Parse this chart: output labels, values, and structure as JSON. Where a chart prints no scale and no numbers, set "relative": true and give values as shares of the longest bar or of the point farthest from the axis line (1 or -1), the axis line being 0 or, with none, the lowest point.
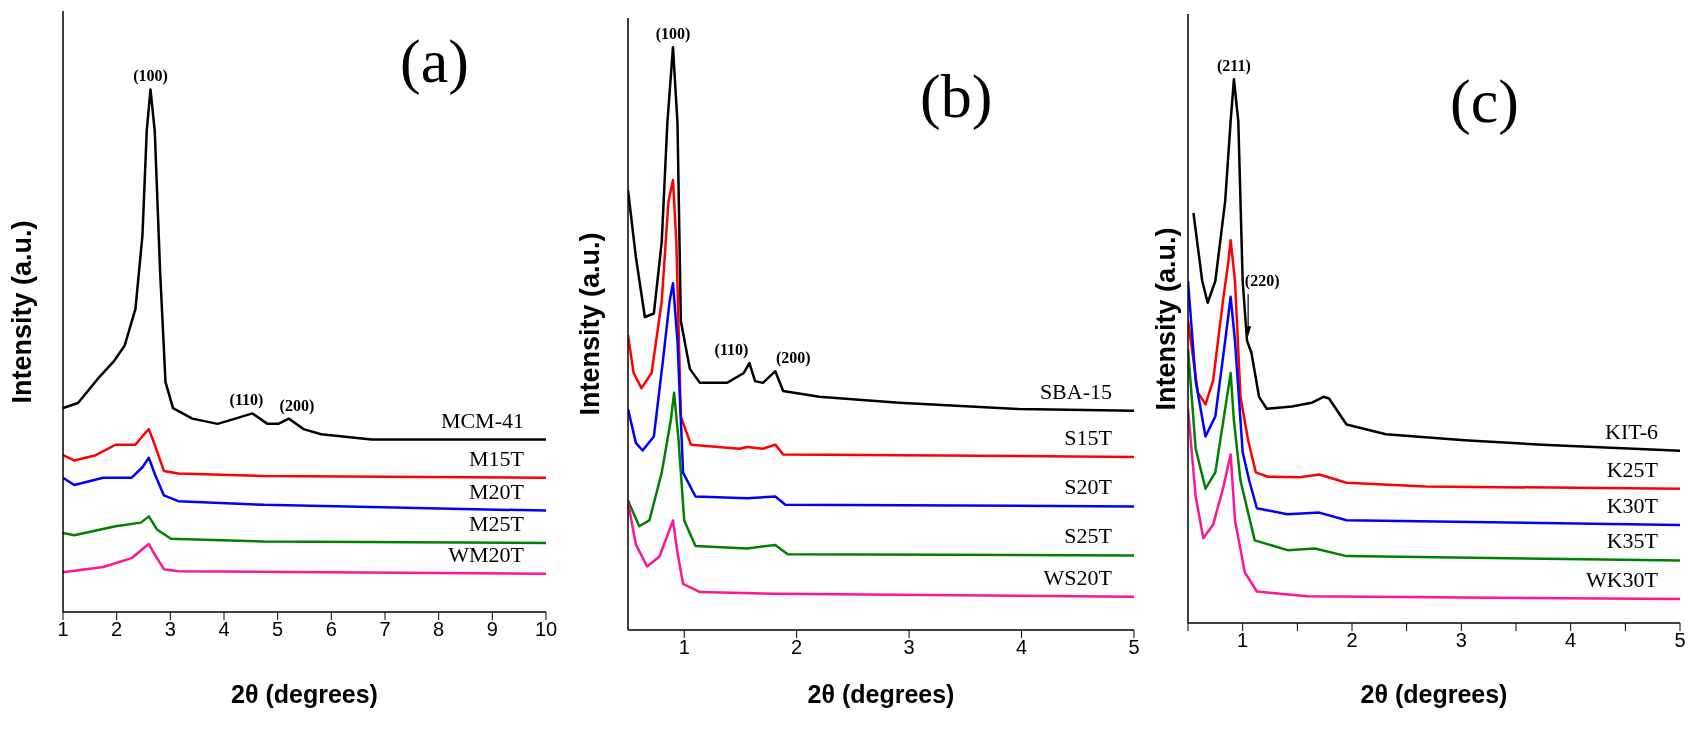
{
  "chart_data": [
    {
      "type": "line",
      "title": "(a)",
      "xlabel": "2θ (degrees)",
      "ylabel": "Intensity (a.u.)",
      "relative": true,
      "marker": "none",
      "line_style": "solid",
      "xlim": [
        1,
        10
      ],
      "xticks": [
        1,
        2,
        3,
        4,
        5,
        6,
        7,
        8,
        9,
        10
      ],
      "annotations": [
        {
          "text": "(100)",
          "x": 2.63,
          "y": 1.0
        },
        {
          "text": "(110)",
          "x": 4.53,
          "y": 0.38
        },
        {
          "text": "(200)",
          "x": 5.21,
          "y": 0.37
        }
      ],
      "series": [
        {
          "name": "MCM-41",
          "color": "#000000",
          "x": [
            1.0,
            1.28,
            1.68,
            1.95,
            2.15,
            2.35,
            2.48,
            2.56,
            2.63,
            2.71,
            2.81,
            2.91,
            3.05,
            3.41,
            3.88,
            4.21,
            4.53,
            4.81,
            5.01,
            5.21,
            5.48,
            5.81,
            6.75,
            8.08,
            10
          ],
          "values": [
            0.39,
            0.4,
            0.45,
            0.48,
            0.51,
            0.58,
            0.72,
            0.92,
            1.0,
            0.92,
            0.65,
            0.44,
            0.39,
            0.37,
            0.36,
            0.37,
            0.38,
            0.36,
            0.36,
            0.37,
            0.35,
            0.34,
            0.33,
            0.33,
            0.33
          ]
        },
        {
          "name": "M15T",
          "color": "#ff0000",
          "x": [
            1.0,
            1.21,
            1.61,
            1.98,
            2.35,
            2.51,
            2.6,
            2.71,
            2.88,
            3.15,
            4.75,
            10
          ],
          "values": [
            0.3,
            0.29,
            0.3,
            0.32,
            0.32,
            0.34,
            0.35,
            0.32,
            0.27,
            0.265,
            0.26,
            0.257
          ]
        },
        {
          "name": "M20T",
          "color": "#0000ff",
          "x": [
            1.0,
            1.21,
            1.75,
            2.28,
            2.48,
            2.6,
            2.71,
            2.88,
            3.15,
            4.75,
            10
          ],
          "values": [
            0.257,
            0.243,
            0.257,
            0.257,
            0.277,
            0.295,
            0.264,
            0.223,
            0.212,
            0.205,
            0.194
          ]
        },
        {
          "name": "M25T",
          "color": "#008000",
          "x": [
            1.0,
            1.21,
            1.98,
            2.45,
            2.6,
            2.75,
            3.01,
            4.75,
            10
          ],
          "values": [
            0.151,
            0.147,
            0.164,
            0.171,
            0.183,
            0.158,
            0.14,
            0.135,
            0.132
          ]
        },
        {
          "name": "WM20T",
          "color": "#ff1493",
          "x": [
            1.0,
            1.75,
            2.28,
            2.51,
            2.6,
            2.71,
            2.88,
            3.15,
            10
          ],
          "values": [
            0.076,
            0.086,
            0.103,
            0.123,
            0.13,
            0.11,
            0.082,
            0.078,
            0.073
          ]
        }
      ]
    },
    {
      "type": "line",
      "title": "(b)",
      "xlabel": "2θ (degrees)",
      "ylabel": "Intensity (a.u.)",
      "relative": true,
      "marker": "none",
      "line_style": "solid",
      "xlim": [
        0.5,
        5
      ],
      "xticks": [
        1,
        2,
        3,
        4,
        5
      ],
      "annotations": [
        {
          "text": "(100)",
          "x": 0.9,
          "y": 1.0
        },
        {
          "text": "(110)",
          "x": 1.58,
          "y": 0.458
        },
        {
          "text": "(200)",
          "x": 1.81,
          "y": 0.444
        }
      ],
      "series": [
        {
          "name": "SBA-15",
          "color": "#000000",
          "x": [
            0.5,
            0.57,
            0.65,
            0.73,
            0.8,
            0.85,
            0.9,
            0.94,
            0.97,
            1.05,
            1.14,
            1.38,
            1.53,
            1.58,
            1.63,
            1.7,
            1.81,
            1.88,
            2.2,
            2.91,
            3.98,
            5
          ],
          "values": [
            0.755,
            0.64,
            0.537,
            0.543,
            0.666,
            0.87,
            1.0,
            0.87,
            0.53,
            0.448,
            0.424,
            0.424,
            0.441,
            0.458,
            0.427,
            0.424,
            0.444,
            0.41,
            0.4,
            0.39,
            0.379,
            0.376
          ]
        },
        {
          "name": "S15T",
          "color": "#ff0000",
          "x": [
            0.5,
            0.55,
            0.62,
            0.71,
            0.8,
            0.86,
            0.9,
            0.93,
            0.97,
            1.06,
            1.49,
            1.56,
            1.7,
            1.81,
            1.88,
            5
          ],
          "values": [
            0.506,
            0.441,
            0.415,
            0.441,
            0.564,
            0.735,
            0.772,
            0.666,
            0.366,
            0.318,
            0.311,
            0.314,
            0.311,
            0.318,
            0.301,
            0.297
          ]
        },
        {
          "name": "S20T",
          "color": "#0000ff",
          "x": [
            0.5,
            0.57,
            0.63,
            0.73,
            0.81,
            0.87,
            0.9,
            0.94,
            0.99,
            1.1,
            1.56,
            1.81,
            1.9,
            5
          ],
          "values": [
            0.379,
            0.321,
            0.308,
            0.332,
            0.461,
            0.564,
            0.595,
            0.496,
            0.27,
            0.229,
            0.226,
            0.229,
            0.215,
            0.212
          ]
        },
        {
          "name": "S25T",
          "color": "#008000",
          "x": [
            0.5,
            0.6,
            0.69,
            0.8,
            0.88,
            0.91,
            0.95,
            1.0,
            1.1,
            1.56,
            1.81,
            1.92,
            5
          ],
          "values": [
            0.222,
            0.178,
            0.188,
            0.27,
            0.359,
            0.407,
            0.325,
            0.188,
            0.144,
            0.14,
            0.146,
            0.13,
            0.128
          ]
        },
        {
          "name": "WS20T",
          "color": "#ff1493",
          "x": [
            0.5,
            0.57,
            0.67,
            0.78,
            0.86,
            0.9,
            0.94,
            0.99,
            1.14,
            1.81,
            5
          ],
          "values": [
            0.219,
            0.147,
            0.109,
            0.126,
            0.167,
            0.188,
            0.133,
            0.079,
            0.065,
            0.062,
            0.057
          ]
        }
      ]
    },
    {
      "type": "line",
      "title": "(c)",
      "xlabel": "2θ (degrees)",
      "ylabel": "Intensity (a.u.)",
      "relative": true,
      "marker": "none",
      "line_style": "solid",
      "xlim": [
        0.5,
        5
      ],
      "xticks": [
        {
          "value": 0.5,
          "label": null
        },
        1,
        {
          "value": 1.5,
          "label": null
        },
        2,
        {
          "value": 2.5,
          "label": null
        },
        3,
        {
          "value": 3.5,
          "label": null
        },
        4,
        {
          "value": 4.5,
          "label": null
        },
        5
      ],
      "annotations": [
        {
          "text": "(211)",
          "x": 0.92,
          "y": 1.0
        },
        {
          "text": "(220)",
          "x": 1.05,
          "y": 0.52
        }
      ],
      "series": [
        {
          "name": "KIT-6",
          "color": "#000000",
          "x": [
            0.55,
            0.63,
            0.68,
            0.75,
            0.84,
            0.89,
            0.92,
            0.96,
            1.0,
            1.04,
            1.08,
            1.15,
            1.22,
            1.45,
            1.63,
            1.74,
            1.79,
            1.95,
            2.31,
            3.03,
            3.74,
            5
          ],
          "values": [
            0.754,
            0.629,
            0.589,
            0.629,
            0.776,
            0.923,
            1.0,
            0.923,
            0.629,
            0.519,
            0.497,
            0.416,
            0.394,
            0.398,
            0.405,
            0.416,
            0.413,
            0.365,
            0.347,
            0.336,
            0.328,
            0.317
          ]
        },
        {
          "name": "K25T",
          "color": "#ff0000",
          "x": [
            0.5,
            0.59,
            0.66,
            0.73,
            0.82,
            0.87,
            0.89,
            0.93,
            0.98,
            1.05,
            1.12,
            1.23,
            1.52,
            1.7,
            1.95,
            2.67,
            5
          ],
          "values": [
            0.556,
            0.424,
            0.402,
            0.446,
            0.593,
            0.666,
            0.704,
            0.629,
            0.416,
            0.336,
            0.277,
            0.269,
            0.268,
            0.273,
            0.258,
            0.251,
            0.247
          ]
        },
        {
          "name": "K30T",
          "color": "#0000ff",
          "x": [
            0.5,
            0.57,
            0.66,
            0.75,
            0.84,
            0.89,
            0.93,
            1.0,
            1.06,
            1.13,
            1.41,
            1.7,
            1.95,
            5
          ],
          "values": [
            0.629,
            0.446,
            0.343,
            0.38,
            0.519,
            0.6,
            0.519,
            0.314,
            0.262,
            0.211,
            0.2,
            0.203,
            0.189,
            0.18
          ]
        },
        {
          "name": "K35T",
          "color": "#008000",
          "x": [
            0.5,
            0.57,
            0.66,
            0.75,
            0.84,
            0.89,
            0.92,
            0.98,
            1.11,
            1.41,
            1.66,
            1.95,
            5
          ],
          "values": [
            0.504,
            0.321,
            0.247,
            0.277,
            0.394,
            0.46,
            0.372,
            0.262,
            0.152,
            0.134,
            0.137,
            0.123,
            0.115
          ]
        },
        {
          "name": "WK30T",
          "color": "#ff1493",
          "x": [
            0.5,
            0.57,
            0.64,
            0.73,
            0.82,
            0.89,
            0.93,
            1.02,
            1.13,
            1.59,
            5
          ],
          "values": [
            0.394,
            0.233,
            0.156,
            0.181,
            0.247,
            0.31,
            0.189,
            0.093,
            0.058,
            0.049,
            0.044
          ]
        }
      ]
    }
  ]
}
